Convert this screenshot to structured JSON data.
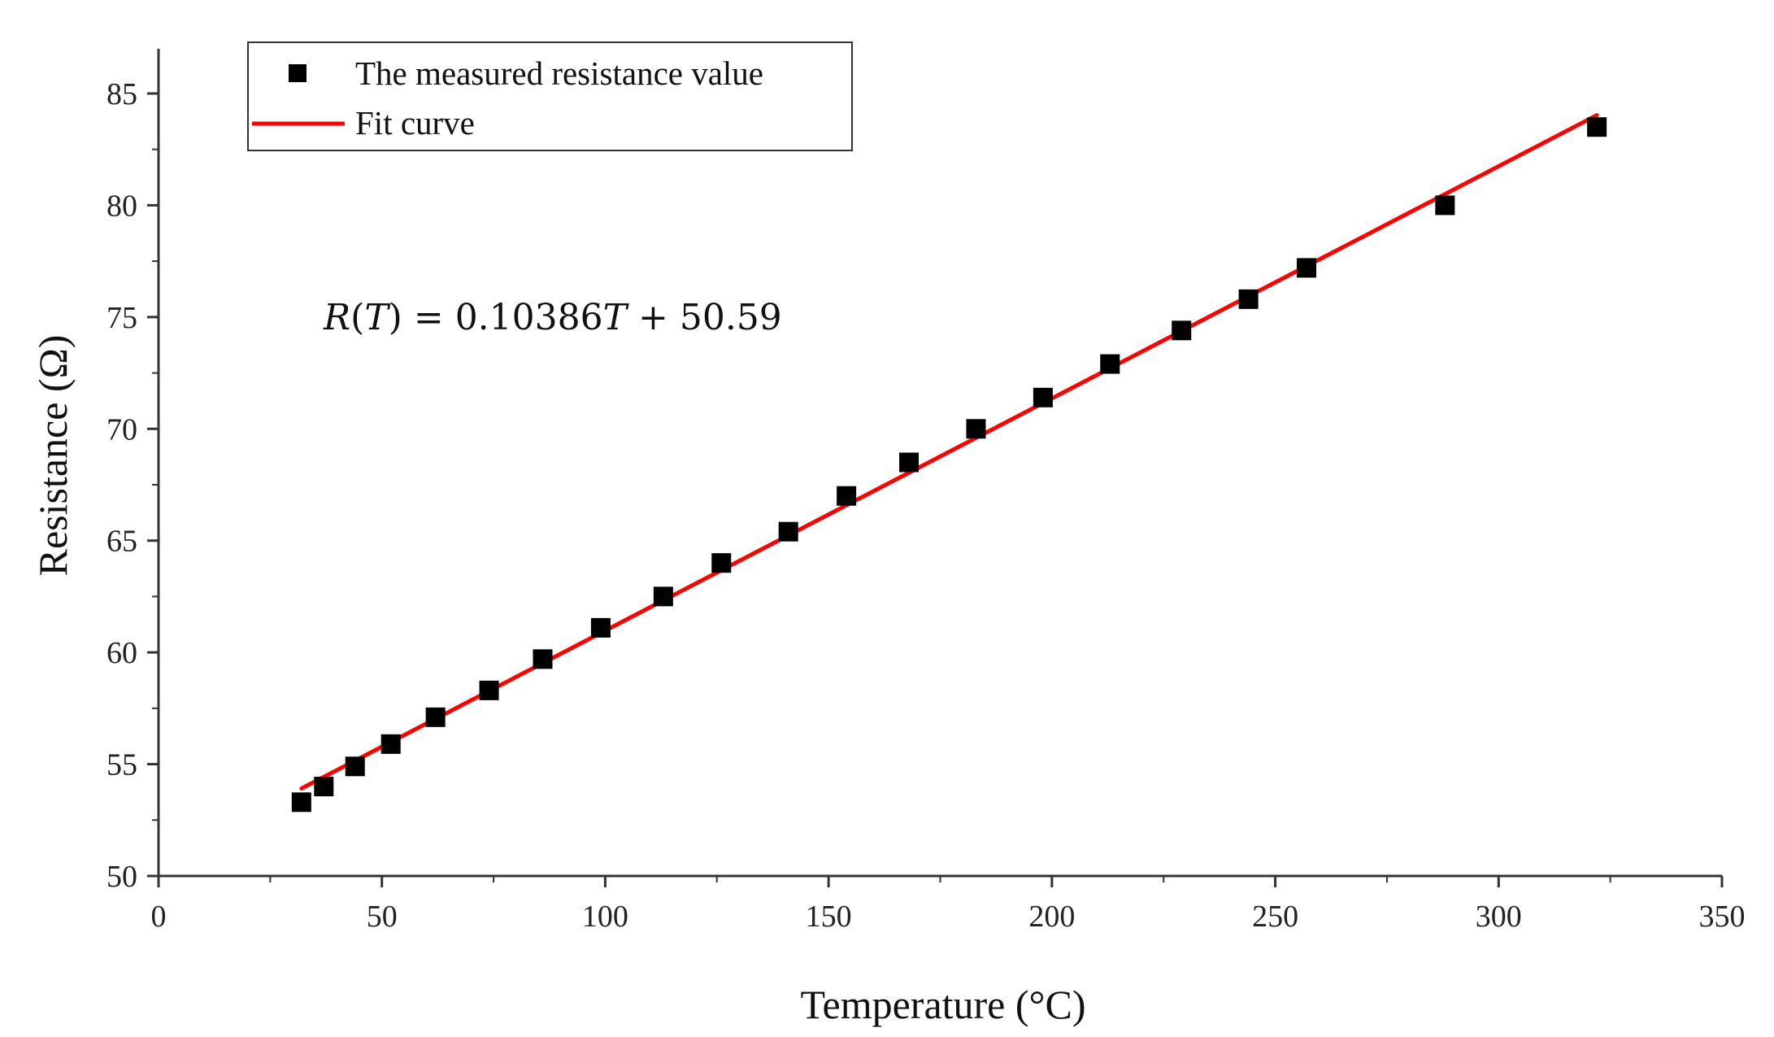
{
  "chart_data": {
    "type": "scatter",
    "title": "",
    "xlabel": "Temperature (°C)",
    "ylabel": "Resistance (Ω)",
    "xlim": [
      0,
      350
    ],
    "ylim": [
      50,
      87
    ],
    "xticks": [
      0,
      50,
      100,
      150,
      200,
      250,
      300,
      350
    ],
    "yticks": [
      50,
      55,
      60,
      65,
      70,
      75,
      80,
      85
    ],
    "x_minor_step": 25,
    "y_minor_step": 2.5,
    "grid": false,
    "legend_position": "top-left",
    "series": [
      {
        "name": "The measured resistance value",
        "kind": "scatter",
        "marker": "square",
        "color": "#000000",
        "x": [
          32,
          37,
          44,
          52,
          62,
          74,
          86,
          99,
          113,
          126,
          141,
          154,
          168,
          183,
          198,
          213,
          229,
          244,
          257,
          288,
          322
        ],
        "y": [
          53.3,
          54.0,
          54.9,
          55.9,
          57.1,
          58.3,
          59.7,
          61.1,
          62.5,
          64.0,
          65.4,
          67.0,
          68.5,
          70.0,
          71.4,
          72.9,
          74.4,
          75.8,
          77.2,
          80.0,
          83.5
        ]
      },
      {
        "name": "Fit curve",
        "kind": "line",
        "color": "#ff0000",
        "slope": 0.10386,
        "intercept": 50.59,
        "x_range": [
          32,
          322
        ]
      }
    ],
    "annotation": {
      "lhs": "R",
      "paren_open": "(",
      "var": "T",
      "paren_close": ")",
      "equals": " = ",
      "coef": "0.10386",
      "var2": "T",
      "rest": " + 50.59"
    }
  }
}
